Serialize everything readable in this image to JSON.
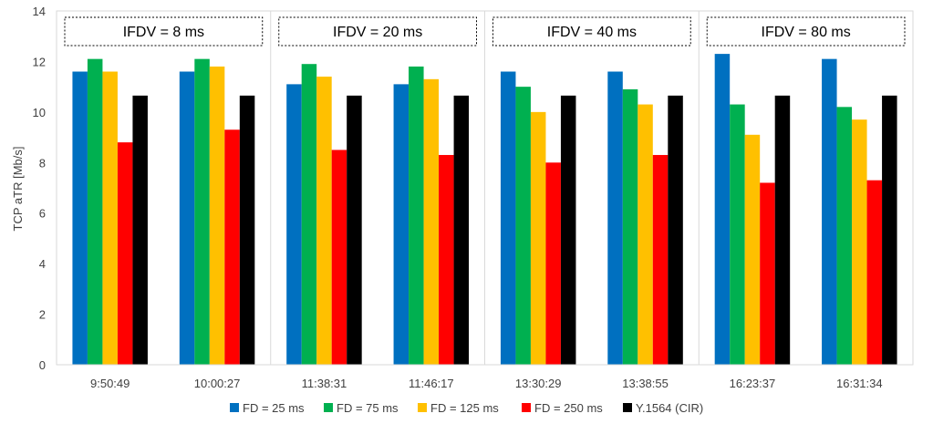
{
  "chart_data": {
    "type": "bar",
    "title": "",
    "xlabel": "",
    "ylabel": "TCP aTR [Mb/s]",
    "ylim": [
      0,
      14
    ],
    "yticks": [
      0,
      2,
      4,
      6,
      8,
      10,
      12,
      14
    ],
    "grid": false,
    "legend_position": "bottom",
    "categories": [
      "9:50:49",
      "10:00:27",
      "11:38:31",
      "11:46:17",
      "13:30:29",
      "13:38:55",
      "16:23:37",
      "16:31:34"
    ],
    "groups": [
      {
        "label": "IFDV = 8 ms",
        "categories": [
          "9:50:49",
          "10:00:27"
        ]
      },
      {
        "label": "IFDV = 20 ms",
        "categories": [
          "11:38:31",
          "11:46:17"
        ]
      },
      {
        "label": "IFDV = 40 ms",
        "categories": [
          "13:30:29",
          "13:38:55"
        ]
      },
      {
        "label": "IFDV = 80 ms",
        "categories": [
          "16:23:37",
          "16:31:34"
        ]
      }
    ],
    "series": [
      {
        "name": "FD = 25 ms",
        "color": "#0070c0",
        "values": [
          11.6,
          11.6,
          11.1,
          11.1,
          11.6,
          11.6,
          12.3,
          12.1
        ]
      },
      {
        "name": "FD = 75 ms",
        "color": "#00b050",
        "values": [
          12.1,
          12.1,
          11.9,
          11.8,
          11.0,
          10.9,
          10.3,
          10.2
        ]
      },
      {
        "name": "FD = 125 ms",
        "color": "#ffc000",
        "values": [
          11.6,
          11.8,
          11.4,
          11.3,
          10.0,
          10.3,
          9.1,
          9.7
        ]
      },
      {
        "name": "FD = 250 ms",
        "color": "#ff0000",
        "values": [
          8.8,
          9.3,
          8.5,
          8.3,
          8.0,
          8.3,
          7.2,
          7.3
        ]
      },
      {
        "name": "Y.1564 (CIR)",
        "color": "#000000",
        "values": [
          10.65,
          10.65,
          10.65,
          10.65,
          10.65,
          10.65,
          10.65,
          10.65
        ]
      }
    ]
  }
}
